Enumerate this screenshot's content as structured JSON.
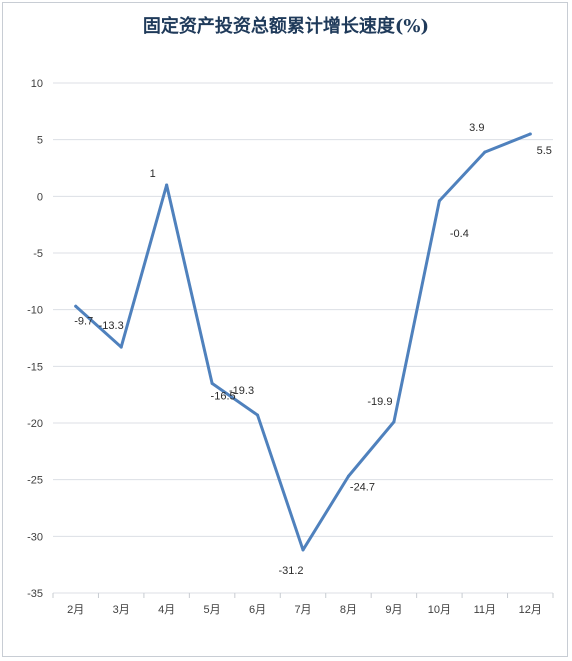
{
  "chart_data": {
    "type": "line",
    "title": "固定资产投资总额累计增长速度(%)",
    "xlabel": "",
    "ylabel": "",
    "categories": [
      "2月",
      "3月",
      "4月",
      "5月",
      "6月",
      "7月",
      "8月",
      "9月",
      "10月",
      "11月",
      "12月"
    ],
    "series": [
      {
        "values": [
          -9.7,
          -13.3,
          1,
          -16.5,
          -19.3,
          -31.2,
          -24.7,
          -19.9,
          -0.4,
          3.9,
          5.5
        ]
      }
    ],
    "data_labels": [
      "-9.7",
      "-13.3",
      "1",
      "-16.5",
      "-19.3",
      "-31.2",
      "-24.7",
      "-19.9",
      "-0.4",
      "3.9",
      "5.5"
    ],
    "ylim": [
      -35,
      10
    ],
    "yticks": [
      10,
      5,
      0,
      -5,
      -10,
      -15,
      -20,
      -25,
      -30,
      -35
    ],
    "grid": true,
    "line_color": "#4f81bd"
  }
}
